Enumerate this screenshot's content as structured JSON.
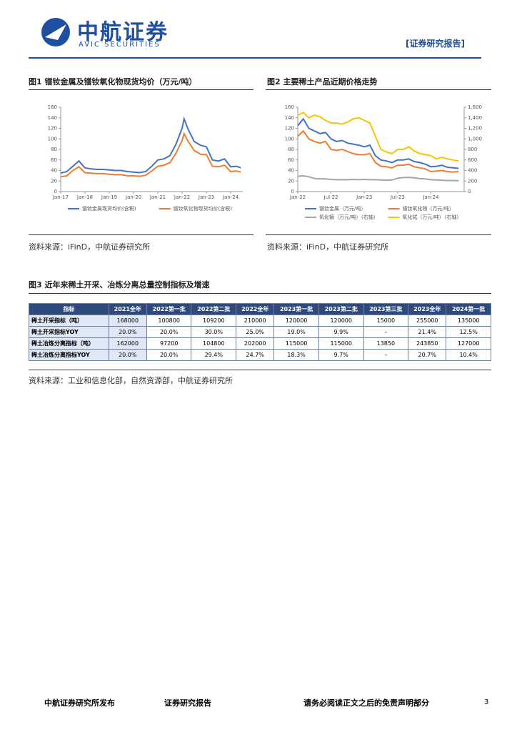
{
  "header": {
    "logo": "中航证券",
    "logo_en": "AVIC SECURITIES",
    "tag": "[证券研究报告]"
  },
  "figures": [
    {
      "title": "图1 镨钕金属及镨钕氧化物现货均价（万元/吨）",
      "source": "资料来源：iFinD，中航证券研究所"
    },
    {
      "title": "图2 主要稀土产品近期价格走势",
      "source": "资料来源：iFinD，中航证券研究所"
    },
    {
      "title": "图3 近年来稀土开采、冶炼分离总量控制指标及增速",
      "source": "资料来源：工业和信息化部，自然资源部，中航证券研究所"
    }
  ],
  "chart_data": [
    {
      "type": "line",
      "x": [
        "2017-01",
        "2017-04",
        "2017-07",
        "2017-10",
        "2018-01",
        "2018-04",
        "2018-07",
        "2018-10",
        "2019-01",
        "2019-04",
        "2019-07",
        "2019-10",
        "2020-01",
        "2020-04",
        "2020-07",
        "2020-10",
        "2021-01",
        "2021-04",
        "2021-07",
        "2021-10",
        "2022-01",
        "2022-02",
        "2022-04",
        "2022-07",
        "2022-10",
        "2023-01",
        "2023-04",
        "2023-07",
        "2023-10",
        "2024-01",
        "2024-04",
        "2024-06"
      ],
      "xlim": [
        "2017-01",
        "2024-07"
      ],
      "xticks": [
        {
          "value": "2017-01",
          "label": "Jan-17"
        },
        {
          "value": "2018-01",
          "label": "Jan-18"
        },
        {
          "value": "2019-01",
          "label": "Jan-19"
        },
        {
          "value": "2020-01",
          "label": "Jan-20"
        },
        {
          "value": "2021-01",
          "label": "Jan-21"
        },
        {
          "value": "2022-01",
          "label": "Jan-22"
        },
        {
          "value": "2023-01",
          "label": "Jan-23"
        },
        {
          "value": "2024-01",
          "label": "Jan-24"
        }
      ],
      "ylim": [
        0,
        160
      ],
      "yticks": [
        0,
        20,
        40,
        60,
        80,
        100,
        120,
        140,
        160
      ],
      "series": [
        {
          "name": "镨钕金属现货均价(含税)",
          "color": "#4472c4",
          "values": [
            35,
            38,
            48,
            58,
            45,
            43,
            42,
            42,
            41,
            40,
            40,
            38,
            37,
            36,
            38,
            48,
            60,
            62,
            68,
            90,
            120,
            138,
            118,
            95,
            88,
            85,
            60,
            58,
            62,
            47,
            48,
            45
          ]
        },
        {
          "name": "镨钕氧化物现货均价(含税)",
          "color": "#ed7d31",
          "values": [
            28,
            30,
            40,
            47,
            36,
            35,
            34,
            34,
            33,
            32,
            32,
            30,
            30,
            29,
            31,
            39,
            48,
            50,
            55,
            73,
            97,
            110,
            95,
            78,
            71,
            70,
            48,
            47,
            50,
            38,
            39,
            37
          ]
        }
      ]
    },
    {
      "type": "line",
      "x": [
        "2022-01",
        "2022-02",
        "2022-03",
        "2022-04",
        "2022-05",
        "2022-06",
        "2022-07",
        "2022-08",
        "2022-09",
        "2022-10",
        "2022-11",
        "2022-12",
        "2023-01",
        "2023-02",
        "2023-03",
        "2023-04",
        "2023-05",
        "2023-06",
        "2023-07",
        "2023-08",
        "2023-09",
        "2023-10",
        "2023-11",
        "2023-12",
        "2024-01",
        "2024-02",
        "2024-03",
        "2024-04",
        "2024-05",
        "2024-06"
      ],
      "xlim": [
        "2022-01",
        "2024-07"
      ],
      "xticks": [
        {
          "value": "2022-01",
          "label": "Jan-22"
        },
        {
          "value": "2022-07",
          "label": "Jul-22"
        },
        {
          "value": "2023-01",
          "label": "Jan-23"
        },
        {
          "value": "2023-07",
          "label": "Jul-23"
        },
        {
          "value": "2024-01",
          "label": "Jan-24"
        }
      ],
      "ylim": [
        0,
        160
      ],
      "yticks": [
        0,
        20,
        40,
        60,
        80,
        100,
        120,
        140,
        160
      ],
      "y2lim": [
        0,
        1600
      ],
      "y2ticks": [
        0,
        200,
        400,
        600,
        800,
        {
          "value": 1000,
          "label": "1,000"
        },
        {
          "value": 1200,
          "label": "1,200"
        },
        {
          "value": 1400,
          "label": "1,400"
        },
        {
          "value": 1600,
          "label": "1,600"
        }
      ],
      "series": [
        {
          "name": "镨钕金属（万元/吨）",
          "color": "#4472c4",
          "values": [
            125,
            138,
            120,
            115,
            110,
            112,
            100,
            95,
            97,
            92,
            90,
            88,
            85,
            88,
            68,
            60,
            58,
            55,
            60,
            60,
            62,
            57,
            55,
            52,
            47,
            48,
            50,
            46,
            45,
            44
          ]
        },
        {
          "name": "镨钕氧化物（万元/吨）",
          "color": "#ed7d31",
          "values": [
            105,
            115,
            100,
            95,
            92,
            95,
            80,
            78,
            80,
            76,
            72,
            70,
            70,
            72,
            55,
            48,
            47,
            45,
            50,
            50,
            52,
            47,
            45,
            43,
            38,
            39,
            40,
            38,
            37,
            38
          ]
        },
        {
          "name": "氧化镝（万元/吨）（右轴）",
          "color": "#a5a5a5",
          "axis": "y2",
          "values": [
            290,
            300,
            280,
            250,
            240,
            240,
            230,
            225,
            225,
            225,
            230,
            225,
            230,
            225,
            225,
            220,
            215,
            220,
            255,
            265,
            270,
            260,
            245,
            240,
            225,
            220,
            215,
            210,
            210,
            205
          ]
        },
        {
          "name": "氧化铽（万元/吨）（右轴）",
          "color": "#ffc000",
          "axis": "y2",
          "values": [
            1450,
            1500,
            1400,
            1450,
            1420,
            1350,
            1300,
            1300,
            1280,
            1320,
            1380,
            1400,
            1350,
            1300,
            1050,
            800,
            750,
            720,
            800,
            800,
            850,
            770,
            720,
            700,
            680,
            620,
            650,
            620,
            600,
            580
          ]
        }
      ]
    }
  ],
  "table": {
    "header": [
      "指标",
      "2021全年",
      "2022第一批",
      "2022第二批",
      "2022全年",
      "2023第一批",
      "2023第二批",
      "2023第三批",
      "2023全年",
      "2024第一批"
    ],
    "rows": [
      [
        "稀土开采指标（吨）",
        "168000",
        "100800",
        "109200",
        "210000",
        "120000",
        "120000",
        "15000",
        "255000",
        "135000"
      ],
      [
        "稀土开采指标YOY",
        "20.0%",
        "20.0%",
        "30.0%",
        "25.0%",
        "19.0%",
        "9.9%",
        "–",
        "21.4%",
        "12.5%"
      ],
      [
        "稀土冶炼分离指标（吨）",
        "162000",
        "97200",
        "104800",
        "202000",
        "115000",
        "115000",
        "13850",
        "243850",
        "127000"
      ],
      [
        "稀土冶炼分离指标YOY",
        "20.0%",
        "20.0%",
        "29.4%",
        "24.7%",
        "18.3%",
        "9.7%",
        "–",
        "20.7%",
        "10.4%"
      ]
    ]
  },
  "footer": {
    "left": "中航证券研究所发布",
    "middle": "证券研究报告",
    "right": "请务必阅读正文之后的免责声明部分",
    "page": "3"
  }
}
